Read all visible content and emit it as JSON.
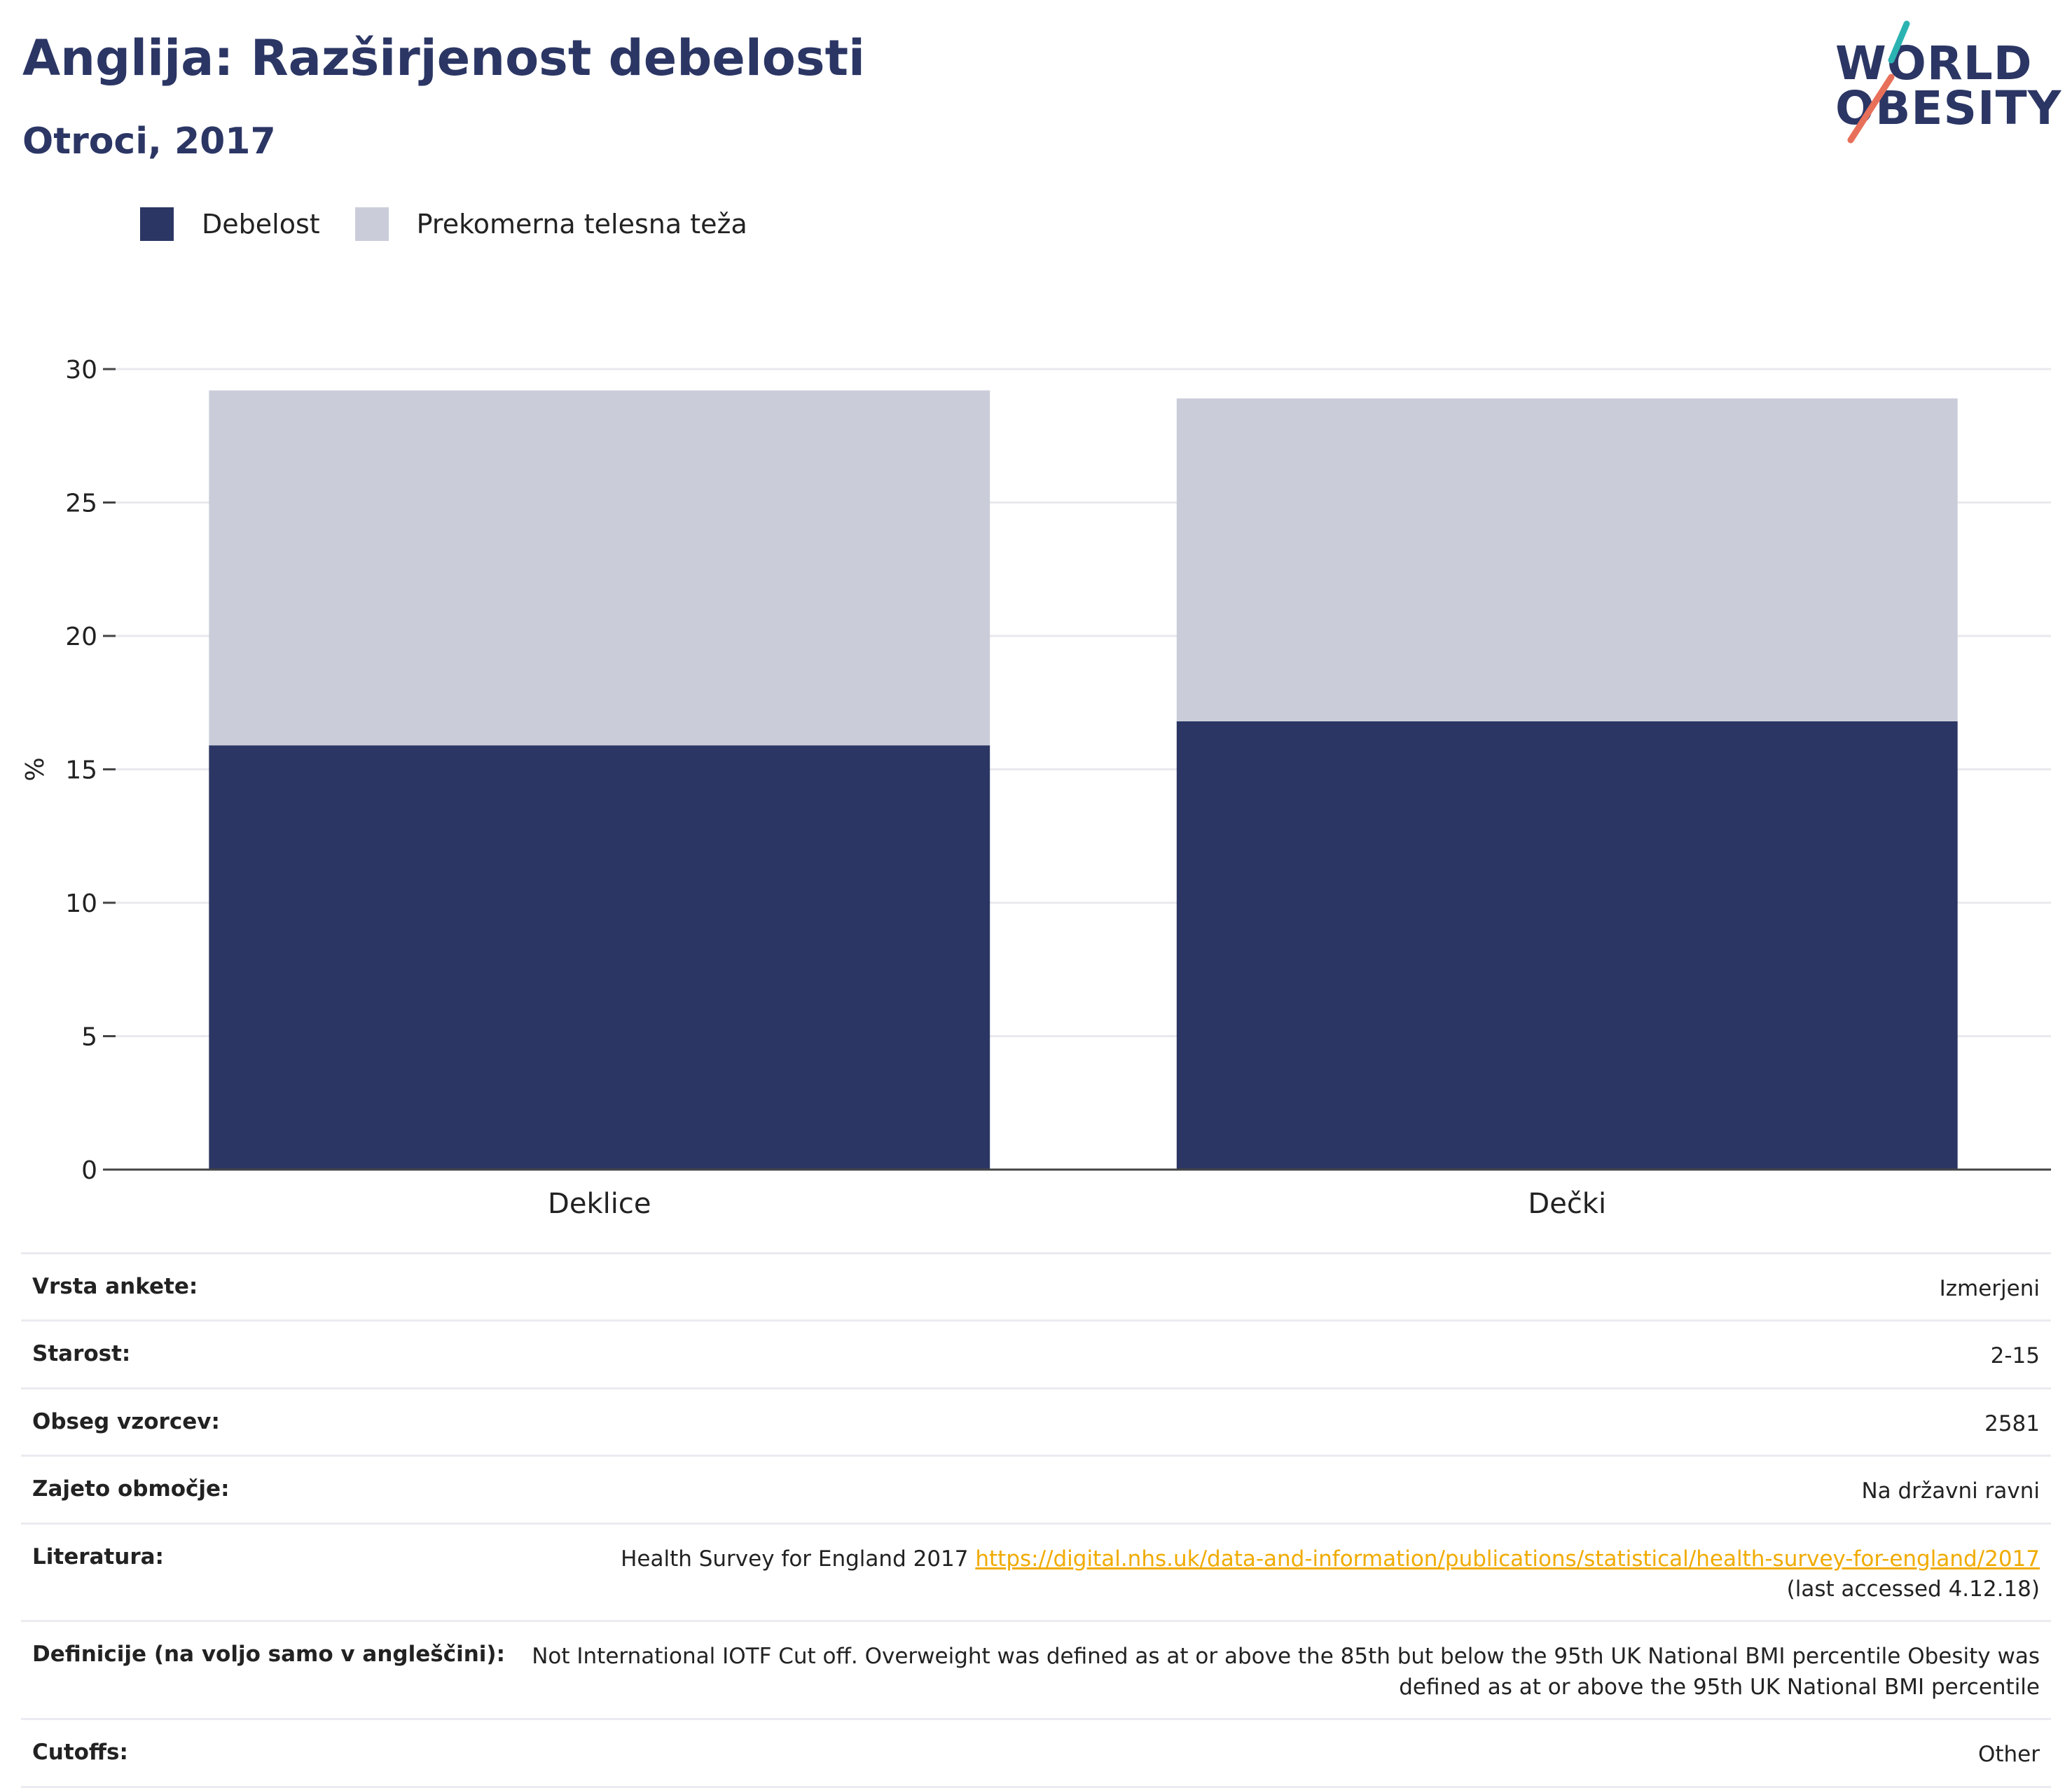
{
  "header": {
    "title": "Anglija: Razširjenost debelosti",
    "subtitle": "Otroci, 2017"
  },
  "logo": {
    "line1": "WORLD",
    "line2": "OBESITY",
    "colors": {
      "text": "#2b3664",
      "slash_top": "#2bb3b1",
      "slash_bottom": "#e8705a"
    }
  },
  "legend": [
    {
      "label": "Debelost",
      "color": "#2b3664"
    },
    {
      "label": "Prekomerna telesna teža",
      "color": "#cacdd9"
    }
  ],
  "chart_data": {
    "type": "bar",
    "stacked": true,
    "categories": [
      "Deklice",
      "Dečki"
    ],
    "series": [
      {
        "name": "Debelost",
        "values": [
          15.9,
          16.8
        ],
        "color": "#2b3664"
      },
      {
        "name": "Prekomerna telesna teža",
        "values": [
          13.3,
          12.1
        ],
        "color": "#cacdd9"
      }
    ],
    "ylabel": "%",
    "ylim": [
      0,
      30
    ],
    "yticks": [
      0,
      5,
      10,
      15,
      20,
      25,
      30
    ],
    "grid": true,
    "legend_position": "top-left"
  },
  "details": [
    {
      "key": "Vrsta ankete:",
      "value": "Izmerjeni"
    },
    {
      "key": "Starost:",
      "value": "2-15"
    },
    {
      "key": "Obseg vzorcev:",
      "value": "2581"
    },
    {
      "key": "Zajeto območje:",
      "value": "Na državni ravni"
    },
    {
      "key": "Literatura:",
      "value": "Health Survey for England 2017",
      "link": "https://digital.nhs.uk/data-and-information/publications/statistical/health-survey-for-england/2017",
      "note": "(last accessed 4.12.18)"
    },
    {
      "key": "Definicije (na voljo samo v angleščini):",
      "value": "Not International IOTF Cut off. Overweight was defined as at or above the 85th but below the 95th UK National BMI percentile Obesity was defined as at or above the 95th UK National BMI percentile"
    },
    {
      "key": "Cutoffs:",
      "value": "Other"
    }
  ]
}
